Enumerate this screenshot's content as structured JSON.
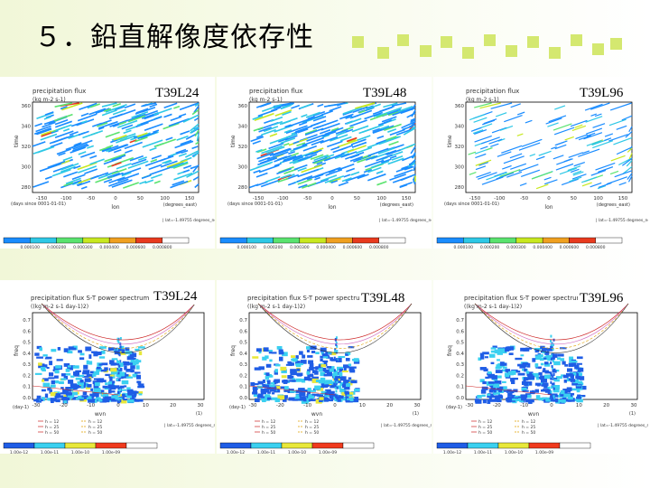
{
  "slide": {
    "title": "５．鉛直解像度依存性"
  },
  "top_panels": [
    {
      "run_label": "T39L24",
      "plot_title": "precipitation flux",
      "units": "(kg m-2 s-1)",
      "ylabel": "time",
      "yticks": [
        "360",
        "340",
        "320",
        "300",
        "280"
      ],
      "xticks": [
        "-150",
        "-100",
        "-50",
        "0",
        "50",
        "100",
        "150"
      ],
      "xlabel": "lon",
      "x_unit": "(degrees_east)",
      "origin_note": "(days since 0001-01-01)",
      "footer": "| lat=-1.49755 degrees_north",
      "colorbar_labels": [
        "0.000100",
        "0.000200",
        "0.000300",
        "0.000400",
        "0.000600",
        "0.000800"
      ]
    },
    {
      "run_label": "T39L48",
      "plot_title": "precipitation flux",
      "units": "(kg m-2 s-1)",
      "ylabel": "time",
      "yticks": [
        "360",
        "340",
        "320",
        "300",
        "280"
      ],
      "xticks": [
        "-150",
        "-100",
        "-50",
        "0",
        "50",
        "100",
        "150"
      ],
      "xlabel": "lon",
      "x_unit": "(degrees_east)",
      "origin_note": "(days since 0001-01-01)",
      "footer": "| lat=-1.49755 degrees_north",
      "colorbar_labels": [
        "0.000100",
        "0.000200",
        "0.000300",
        "0.000400",
        "0.000600",
        "0.000800"
      ]
    },
    {
      "run_label": "T39L96",
      "plot_title": "precipitation flux",
      "units": "(kg m-2 s-1)",
      "ylabel": "time",
      "yticks": [
        "360",
        "340",
        "320",
        "300",
        "280"
      ],
      "xticks": [
        "-150",
        "-100",
        "-50",
        "0",
        "50",
        "100",
        "150"
      ],
      "xlabel": "lon",
      "x_unit": "(degrees_east)",
      "origin_note": "(days since 0001-01-01)",
      "footer": "| lat=-1.49755 degrees_north",
      "colorbar_labels": [
        "0.000100",
        "0.000200",
        "0.000300",
        "0.000400",
        "0.000600",
        "0.000800"
      ]
    }
  ],
  "bottom_panels": [
    {
      "run_label": "T39L24",
      "plot_title": "precipitation flux S-T power spectrum",
      "units": "((kg m-2 s-1 day-1)2)",
      "ylabel": "freq",
      "yticks": [
        "0.7",
        "0.6",
        "0.5",
        "0.4",
        "0.3",
        "0.2",
        "0.1",
        "0.0"
      ],
      "xticks": [
        "-30",
        "-20",
        "-10",
        "0",
        "10",
        "20",
        "30"
      ],
      "xlabel": "wvn",
      "x_unit": "(1)",
      "y_unit": "(day-1)",
      "legend": [
        "h = 12",
        "h = 25",
        "h = 50",
        "h = 12",
        "h = 25",
        "h = 50"
      ],
      "footer": "| lat=-1.49755 degrees_north",
      "colorbar_labels": [
        "1.00e-12",
        "1.00e-11",
        "1.00e-10",
        "1.00e-09"
      ]
    },
    {
      "run_label": "T39L48",
      "plot_title": "precipitation flux S-T power spectrum",
      "units": "((kg m-2 s-1 day-1)2)",
      "ylabel": "freq",
      "yticks": [
        "0.7",
        "0.6",
        "0.5",
        "0.4",
        "0.3",
        "0.2",
        "0.1",
        "0.0"
      ],
      "xticks": [
        "-30",
        "-20",
        "-10",
        "0",
        "10",
        "20",
        "30"
      ],
      "xlabel": "wvn",
      "x_unit": "(1)",
      "y_unit": "(day-1)",
      "legend": [
        "h = 12",
        "h = 25",
        "h = 50",
        "h = 12",
        "h = 25",
        "h = 50"
      ],
      "footer": "| lat=-1.49755 degrees_north",
      "colorbar_labels": [
        "1.00e-12",
        "1.00e-11",
        "1.00e-10",
        "1.00e-09"
      ]
    },
    {
      "run_label": "T39L96",
      "plot_title": "precipitation flux S-T power spectrum",
      "units": "((kg m-2 s-1 day-1)2)",
      "ylabel": "freq",
      "yticks": [
        "0.7",
        "0.6",
        "0.5",
        "0.4",
        "0.3",
        "0.2",
        "0.1",
        "0.0"
      ],
      "xticks": [
        "-30",
        "-20",
        "-10",
        "0",
        "10",
        "20",
        "30"
      ],
      "xlabel": "wvn",
      "x_unit": "(1)",
      "y_unit": "(day-1)",
      "legend": [
        "h = 12",
        "h = 25",
        "h = 50",
        "h = 12",
        "h = 25",
        "h = 50"
      ],
      "footer": "| lat=-1.49755 degrees_north",
      "colorbar_labels": [
        "1.00e-12",
        "1.00e-11",
        "1.00e-10",
        "1.00e-09"
      ]
    }
  ],
  "colors": {
    "colorbar_top": [
      "#1a8cff",
      "#2ec8e6",
      "#5ae36f",
      "#c8e820",
      "#f0a020",
      "#e83a1e",
      "#ffffff"
    ],
    "colorbar_bottom": [
      "#1f5de6",
      "#3ad0f0",
      "#e8e83a",
      "#f03a1e",
      "#ffffff"
    ],
    "title_dots": "#d4e870"
  }
}
